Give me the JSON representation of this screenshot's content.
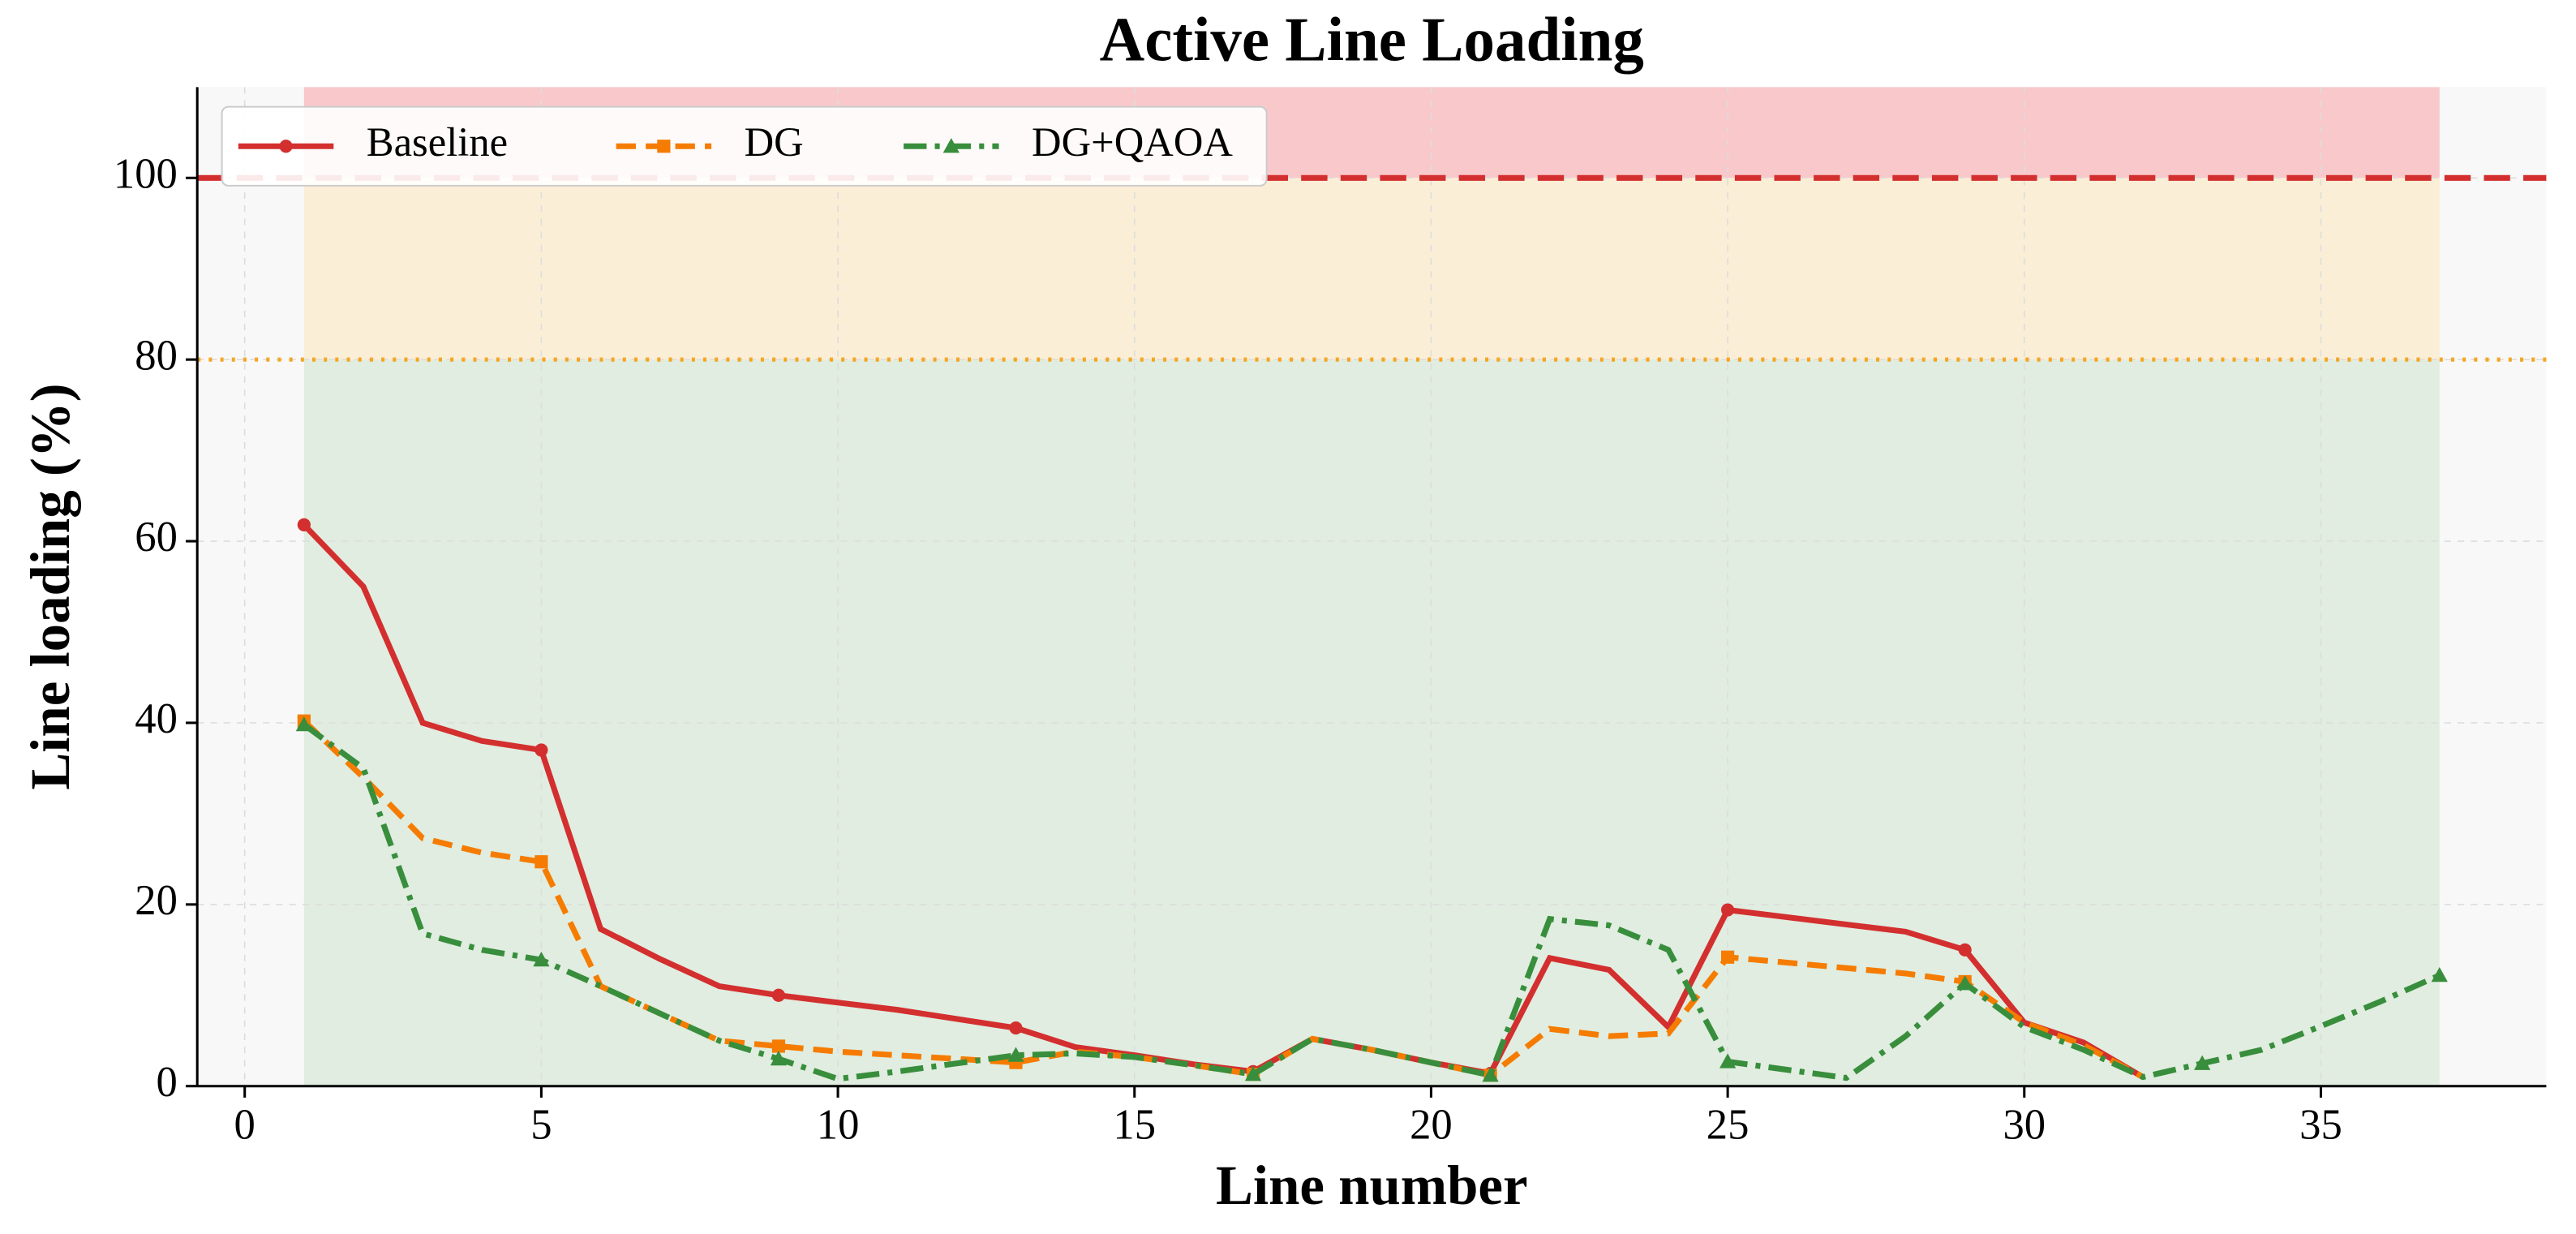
{
  "chart_data": {
    "type": "line",
    "title": "Active Line Loading",
    "x_label": "Line number",
    "y_label": "Line loading (%)",
    "x": [
      1,
      2,
      3,
      4,
      5,
      6,
      7,
      8,
      9,
      10,
      11,
      12,
      13,
      14,
      15,
      16,
      17,
      18,
      19,
      20,
      21,
      22,
      23,
      24,
      25,
      26,
      27,
      28,
      29,
      30,
      31,
      32,
      33,
      34,
      35,
      36,
      37
    ],
    "series": [
      {
        "name": "Baseline",
        "color": "#d32f2f",
        "dash": "solid",
        "marker": "circle",
        "values": [
          61.8,
          55,
          40,
          38,
          37,
          17.3,
          14,
          11,
          10,
          9.2,
          8.4,
          7.4,
          6.4,
          4.3,
          3.4,
          2.4,
          1.6,
          5.2,
          4,
          2.6,
          1.4,
          14.1,
          12.8,
          6.5,
          19.4,
          18.6,
          17.8,
          17,
          15,
          7,
          4.8,
          1,
          null,
          null,
          null,
          null,
          null
        ]
      },
      {
        "name": "DG",
        "color": "#f57c00",
        "dash": "dashed",
        "marker": "square",
        "values": [
          40.2,
          34,
          27.3,
          25.7,
          24.7,
          11,
          8,
          5,
          4.4,
          3.8,
          3.4,
          3,
          2.6,
          3.8,
          3.2,
          2.3,
          1.3,
          5.2,
          4,
          2.6,
          1.2,
          6.3,
          5.5,
          5.8,
          14.2,
          13.6,
          13,
          12.4,
          11.5,
          7,
          4.5,
          1,
          null,
          null,
          null,
          null,
          null
        ]
      },
      {
        "name": "DG+QAOA",
        "color": "#388e3c",
        "dash": "dashdot",
        "marker": "triangle",
        "values": [
          39.8,
          35,
          16.8,
          15,
          13.9,
          11,
          8,
          5,
          3,
          0.8,
          1.6,
          2.5,
          3.4,
          3.6,
          3.2,
          2.3,
          1.3,
          5.2,
          4,
          2.6,
          1.2,
          18.4,
          17.7,
          15,
          2.7,
          1.8,
          0.9,
          5.5,
          11.3,
          6.5,
          4,
          1,
          2.5,
          4,
          6.6,
          9.3,
          12.2
        ]
      }
    ],
    "markevery": 4,
    "bands": [
      {
        "from": 0,
        "to": 80,
        "color": "#e0ede0"
      },
      {
        "from": 80,
        "to": 100,
        "color": "#fbeed6"
      },
      {
        "from": 100,
        "to": 110,
        "color": "#f9c8cb"
      }
    ],
    "band_x": [
      1,
      37
    ],
    "thresholds": [
      {
        "value": 100,
        "color": "#d32f2f",
        "dash": "dashed"
      },
      {
        "value": 80,
        "color": "#f5a623",
        "dash": "dotted"
      }
    ],
    "xlim": [
      -0.8,
      38.8
    ],
    "ylim": [
      0,
      110
    ],
    "xticks": [
      0,
      5,
      10,
      15,
      20,
      25,
      30,
      35
    ],
    "yticks": [
      0,
      20,
      40,
      60,
      80,
      100
    ],
    "grid": true,
    "legend": "upper left"
  }
}
